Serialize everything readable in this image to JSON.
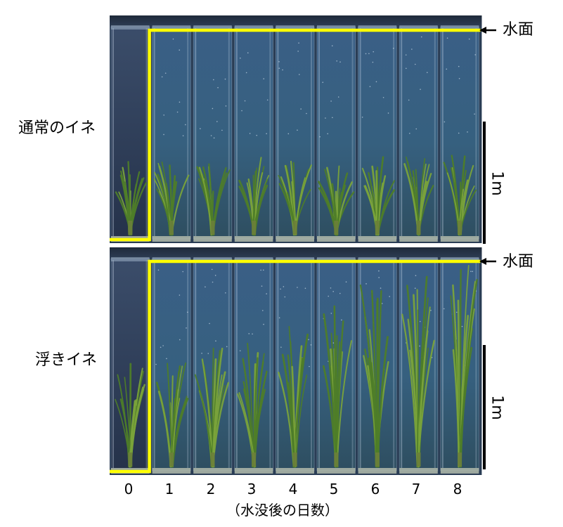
{
  "rows": [
    {
      "label": "通常のイネ",
      "water_label": "水面",
      "scale_label": "1m"
    },
    {
      "label": "浮きイネ",
      "water_label": "水面",
      "scale_label": "1m"
    }
  ],
  "days": [
    "0",
    "1",
    "2",
    "3",
    "4",
    "5",
    "6",
    "7",
    "8"
  ],
  "caption": "（水没後の日数）",
  "plant_heights_relative": {
    "normal": [
      0.36,
      0.38,
      0.37,
      0.38,
      0.37,
      0.37,
      0.39,
      0.38,
      0.39
    ],
    "floating": [
      0.5,
      0.55,
      0.58,
      0.62,
      0.7,
      0.78,
      0.88,
      0.93,
      0.98
    ]
  },
  "colors": {
    "water_line": "#ffff00",
    "tank_water": "#3f6a8e",
    "tank_empty": "#2b3f5c",
    "plant": "#7aa33a",
    "plant_dark": "#4e7d28",
    "scale_bar": "#000000"
  },
  "icons": {
    "water_arrow": "left-arrow-icon"
  }
}
